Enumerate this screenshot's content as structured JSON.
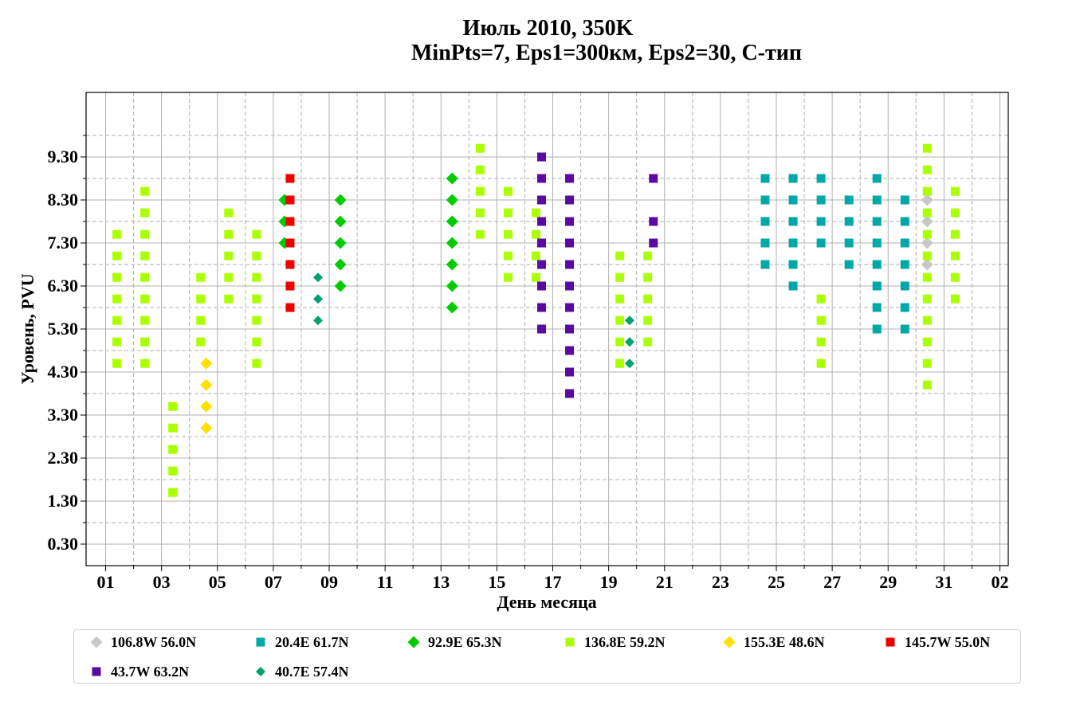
{
  "chart_data": {
    "type": "scatter",
    "title": "Июль 2010, 350K",
    "subtitle": "MinPts=7, Eps1=300км, Eps2=30, C-тип",
    "xlabel": "День месяца",
    "ylabel": "Уровень, PVU",
    "x_ticks": [
      "01",
      "03",
      "05",
      "07",
      "09",
      "11",
      "13",
      "15",
      "17",
      "19",
      "21",
      "23",
      "25",
      "27",
      "29",
      "31",
      "02"
    ],
    "y_ticks": [
      "0.30",
      "1.30",
      "2.30",
      "3.30",
      "4.30",
      "5.30",
      "6.30",
      "7.30",
      "8.30",
      "9.30"
    ],
    "xlim": [
      0.3,
      33.3
    ],
    "ylim": [
      -0.2,
      10.8
    ],
    "grid": true,
    "legend_position": "bottom",
    "series": [
      {
        "name": "106.8W 56.0N",
        "marker": "diamond",
        "color": "#c8c8c8",
        "points": [
          [
            30.4,
            8.3
          ],
          [
            30.4,
            7.8
          ],
          [
            30.4,
            7.3
          ],
          [
            30.4,
            6.8
          ]
        ]
      },
      {
        "name": "20.4E 61.7N",
        "marker": "square",
        "color": "#00a8a8",
        "points": [
          [
            24.6,
            8.8
          ],
          [
            24.6,
            8.3
          ],
          [
            24.6,
            7.8
          ],
          [
            24.6,
            7.3
          ],
          [
            24.6,
            6.8
          ],
          [
            25.6,
            8.8
          ],
          [
            25.6,
            8.3
          ],
          [
            25.6,
            7.8
          ],
          [
            25.6,
            7.3
          ],
          [
            25.6,
            6.8
          ],
          [
            25.6,
            6.3
          ],
          [
            26.6,
            8.8
          ],
          [
            26.6,
            8.3
          ],
          [
            26.6,
            7.8
          ],
          [
            26.6,
            7.3
          ],
          [
            27.6,
            8.3
          ],
          [
            27.6,
            7.8
          ],
          [
            27.6,
            7.3
          ],
          [
            27.6,
            6.8
          ],
          [
            28.6,
            8.8
          ],
          [
            28.6,
            8.3
          ],
          [
            28.6,
            7.8
          ],
          [
            28.6,
            7.3
          ],
          [
            28.6,
            6.8
          ],
          [
            28.6,
            6.3
          ],
          [
            28.6,
            5.8
          ],
          [
            28.6,
            5.3
          ],
          [
            29.6,
            8.3
          ],
          [
            29.6,
            7.8
          ],
          [
            29.6,
            7.3
          ],
          [
            29.6,
            6.8
          ],
          [
            29.6,
            6.3
          ],
          [
            29.6,
            5.8
          ],
          [
            29.6,
            5.3
          ]
        ]
      },
      {
        "name": "92.9E 65.3N",
        "marker": "diamond",
        "color": "#00cc00",
        "points": [
          [
            7.4,
            8.3
          ],
          [
            7.4,
            7.8
          ],
          [
            7.4,
            7.3
          ],
          [
            9.4,
            8.3
          ],
          [
            9.4,
            7.8
          ],
          [
            9.4,
            7.3
          ],
          [
            9.4,
            6.8
          ],
          [
            9.4,
            6.3
          ],
          [
            13.4,
            8.8
          ],
          [
            13.4,
            8.3
          ],
          [
            13.4,
            7.8
          ],
          [
            13.4,
            7.3
          ],
          [
            13.4,
            6.8
          ],
          [
            13.4,
            6.3
          ],
          [
            13.4,
            5.8
          ]
        ]
      },
      {
        "name": "136.8E 59.2N",
        "marker": "square",
        "color": "#aaff00",
        "points": [
          [
            1.4,
            7.5
          ],
          [
            1.4,
            7.0
          ],
          [
            1.4,
            6.5
          ],
          [
            1.4,
            6.0
          ],
          [
            1.4,
            5.5
          ],
          [
            1.4,
            5.0
          ],
          [
            1.4,
            4.5
          ],
          [
            2.4,
            8.5
          ],
          [
            2.4,
            8.0
          ],
          [
            2.4,
            7.5
          ],
          [
            2.4,
            7.0
          ],
          [
            2.4,
            6.5
          ],
          [
            2.4,
            6.0
          ],
          [
            2.4,
            5.5
          ],
          [
            2.4,
            5.0
          ],
          [
            2.4,
            4.5
          ],
          [
            3.4,
            3.5
          ],
          [
            3.4,
            3.0
          ],
          [
            3.4,
            2.5
          ],
          [
            3.4,
            2.0
          ],
          [
            3.4,
            1.5
          ],
          [
            4.4,
            6.5
          ],
          [
            4.4,
            6.0
          ],
          [
            4.4,
            5.5
          ],
          [
            4.4,
            5.0
          ],
          [
            5.4,
            8.0
          ],
          [
            5.4,
            7.5
          ],
          [
            5.4,
            7.0
          ],
          [
            5.4,
            6.5
          ],
          [
            5.4,
            6.0
          ],
          [
            6.4,
            7.5
          ],
          [
            6.4,
            7.0
          ],
          [
            6.4,
            6.5
          ],
          [
            6.4,
            6.0
          ],
          [
            6.4,
            5.5
          ],
          [
            6.4,
            5.0
          ],
          [
            6.4,
            4.5
          ],
          [
            14.4,
            9.5
          ],
          [
            14.4,
            9.0
          ],
          [
            14.4,
            8.5
          ],
          [
            14.4,
            8.0
          ],
          [
            14.4,
            7.5
          ],
          [
            15.4,
            8.5
          ],
          [
            15.4,
            8.0
          ],
          [
            15.4,
            7.5
          ],
          [
            15.4,
            7.0
          ],
          [
            15.4,
            6.5
          ],
          [
            16.4,
            8.0
          ],
          [
            16.4,
            7.5
          ],
          [
            16.4,
            7.0
          ],
          [
            16.4,
            6.5
          ],
          [
            19.4,
            7.0
          ],
          [
            19.4,
            6.5
          ],
          [
            19.4,
            6.0
          ],
          [
            19.4,
            5.5
          ],
          [
            19.4,
            5.0
          ],
          [
            19.4,
            4.5
          ],
          [
            20.4,
            7.0
          ],
          [
            20.4,
            6.5
          ],
          [
            20.4,
            6.0
          ],
          [
            20.4,
            5.5
          ],
          [
            20.4,
            5.0
          ],
          [
            26.6,
            6.0
          ],
          [
            26.6,
            5.5
          ],
          [
            26.6,
            5.0
          ],
          [
            26.6,
            4.5
          ],
          [
            30.4,
            9.5
          ],
          [
            30.4,
            9.0
          ],
          [
            30.4,
            8.5
          ],
          [
            30.4,
            8.0
          ],
          [
            30.4,
            7.5
          ],
          [
            30.4,
            7.0
          ],
          [
            30.4,
            6.5
          ],
          [
            30.4,
            6.0
          ],
          [
            30.4,
            5.5
          ],
          [
            30.4,
            5.0
          ],
          [
            30.4,
            4.5
          ],
          [
            30.4,
            4.0
          ],
          [
            31.4,
            8.5
          ],
          [
            31.4,
            8.0
          ],
          [
            31.4,
            7.5
          ],
          [
            31.4,
            7.0
          ],
          [
            31.4,
            6.5
          ],
          [
            31.4,
            6.0
          ]
        ]
      },
      {
        "name": "155.3E 48.6N",
        "marker": "diamond",
        "color": "#ffe000",
        "points": [
          [
            4.6,
            4.5
          ],
          [
            4.6,
            4.0
          ],
          [
            4.6,
            3.5
          ],
          [
            4.6,
            3.0
          ]
        ]
      },
      {
        "name": "145.7W 55.0N",
        "marker": "square",
        "color": "#ee0000",
        "points": [
          [
            7.6,
            8.8
          ],
          [
            7.6,
            8.3
          ],
          [
            7.6,
            7.8
          ],
          [
            7.6,
            7.3
          ],
          [
            7.6,
            6.8
          ],
          [
            7.6,
            6.3
          ],
          [
            7.6,
            5.8
          ]
        ]
      },
      {
        "name": "43.7W 63.2N",
        "marker": "square",
        "color": "#5a0aa0",
        "points": [
          [
            16.6,
            9.3
          ],
          [
            16.6,
            8.8
          ],
          [
            16.6,
            8.3
          ],
          [
            16.6,
            7.8
          ],
          [
            16.6,
            7.3
          ],
          [
            16.6,
            6.8
          ],
          [
            16.6,
            6.3
          ],
          [
            16.6,
            5.8
          ],
          [
            16.6,
            5.3
          ],
          [
            17.6,
            8.8
          ],
          [
            17.6,
            8.3
          ],
          [
            17.6,
            7.8
          ],
          [
            17.6,
            7.3
          ],
          [
            17.6,
            6.8
          ],
          [
            17.6,
            6.3
          ],
          [
            17.6,
            5.8
          ],
          [
            17.6,
            5.3
          ],
          [
            17.6,
            4.8
          ],
          [
            17.6,
            4.3
          ],
          [
            17.6,
            3.8
          ],
          [
            20.6,
            8.8
          ],
          [
            20.6,
            7.8
          ],
          [
            20.6,
            7.3
          ]
        ]
      },
      {
        "name": "40.7E 57.4N",
        "marker": "diamond-small",
        "color": "#00a070",
        "points": [
          [
            8.6,
            6.5
          ],
          [
            8.6,
            6.0
          ],
          [
            8.6,
            5.5
          ],
          [
            19.75,
            5.5
          ],
          [
            19.75,
            5.0
          ],
          [
            19.75,
            4.5
          ]
        ]
      }
    ]
  }
}
